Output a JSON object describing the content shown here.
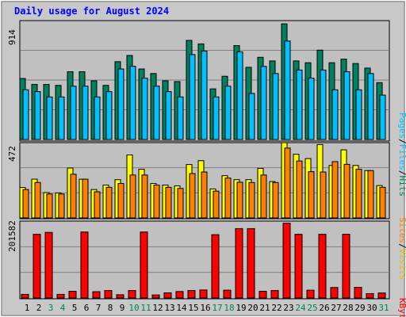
{
  "title": "Daily usage for August 2024",
  "colors": {
    "background": "#c8c8c8",
    "panel": "#c0c0c0",
    "grid": "#808080",
    "title": "#0000ff",
    "hits": "#00805c",
    "files": "#00c0ff",
    "pages": "#0000ff",
    "visits": "#ffff00",
    "sites": "#ff8000",
    "kbytes": "#ff0000",
    "weekend_label": "#00805c",
    "weekday_label": "#000000"
  },
  "labels": {
    "hits_max": "914",
    "visits_max": "472",
    "kbytes_max": "201582",
    "legend_pages": "Pages",
    "legend_files": "Files",
    "legend_hits": "Hits",
    "legend_sites": "Sites",
    "legend_visits": "Visits",
    "legend_kbytes": "KBytes",
    "sep": "/"
  },
  "chart_data": {
    "type": "bar",
    "title": "Daily usage for August 2024",
    "categories": [
      "1",
      "2",
      "3",
      "4",
      "5",
      "6",
      "7",
      "8",
      "9",
      "10",
      "11",
      "12",
      "13",
      "14",
      "15",
      "16",
      "17",
      "18",
      "19",
      "20",
      "21",
      "22",
      "23",
      "24",
      "25",
      "26",
      "27",
      "28",
      "29",
      "30",
      "31"
    ],
    "weekend_days": [
      "3",
      "4",
      "10",
      "11",
      "17",
      "18",
      "24",
      "25",
      "31"
    ],
    "panels": [
      {
        "name": "hits-files-pages",
        "ylim": [
          0,
          914
        ],
        "series": [
          {
            "name": "Hits",
            "values": [
              469,
              423,
              423,
              416,
              521,
              521,
              451,
              416,
              598,
              646,
              542,
              507,
              451,
              445,
              762,
              735,
              389,
              486,
              722,
              555,
              632,
              604,
              889,
              604,
              590,
              687,
              590,
              618,
              584,
              549,
              437
            ]
          },
          {
            "name": "Files",
            "values": [
              382,
              368,
              327,
              327,
              410,
              410,
              327,
              368,
              542,
              563,
              472,
              410,
              368,
              327,
              653,
              680,
              327,
              410,
              674,
              354,
              562,
              507,
              757,
              534,
              472,
              534,
              382,
              521,
              382,
              507,
              341
            ]
          },
          {
            "name": "Pages",
            "values": [
              0,
              0,
              0,
              0,
              0,
              0,
              0,
              0,
              0,
              0,
              0,
              0,
              0,
              0,
              0,
              0,
              0,
              0,
              0,
              0,
              0,
              0,
              0,
              0,
              0,
              0,
              0,
              0,
              0,
              0,
              0
            ]
          }
        ]
      },
      {
        "name": "visits-sites",
        "ylim": [
          0,
          472
        ],
        "series": [
          {
            "name": "Visits",
            "values": [
              191,
              243,
              159,
              157,
              313,
              243,
              178,
              206,
              240,
              395,
              305,
              216,
              206,
              201,
              335,
              359,
              182,
              265,
              240,
              240,
              311,
              228,
              472,
              399,
              372,
              460,
              329,
              427,
              329,
              297,
              203
            ]
          },
          {
            "name": "Sites",
            "values": [
              178,
              222,
              150,
              150,
              274,
              243,
              164,
              192,
              216,
              269,
              269,
              206,
              192,
              185,
              278,
              288,
              168,
              250,
              224,
              222,
              269,
              222,
              438,
              357,
              290,
              288,
              353,
              336,
              305,
              297,
              192
            ]
          }
        ]
      },
      {
        "name": "kbytes",
        "ylim": [
          0,
          201582
        ],
        "series": [
          {
            "name": "KBytes",
            "values": [
              9500,
              167000,
              172000,
              9500,
              17500,
              173000,
              16500,
              19500,
              8500,
              19500,
              173000,
              8000,
              13500,
              17000,
              19500,
              21000,
              166000,
              20500,
              182000,
              182000,
              17500,
              19500,
              196000,
              167000,
              20500,
              167000,
              27500,
              167000,
              28000,
              11500,
              13000
            ]
          }
        ]
      }
    ]
  }
}
